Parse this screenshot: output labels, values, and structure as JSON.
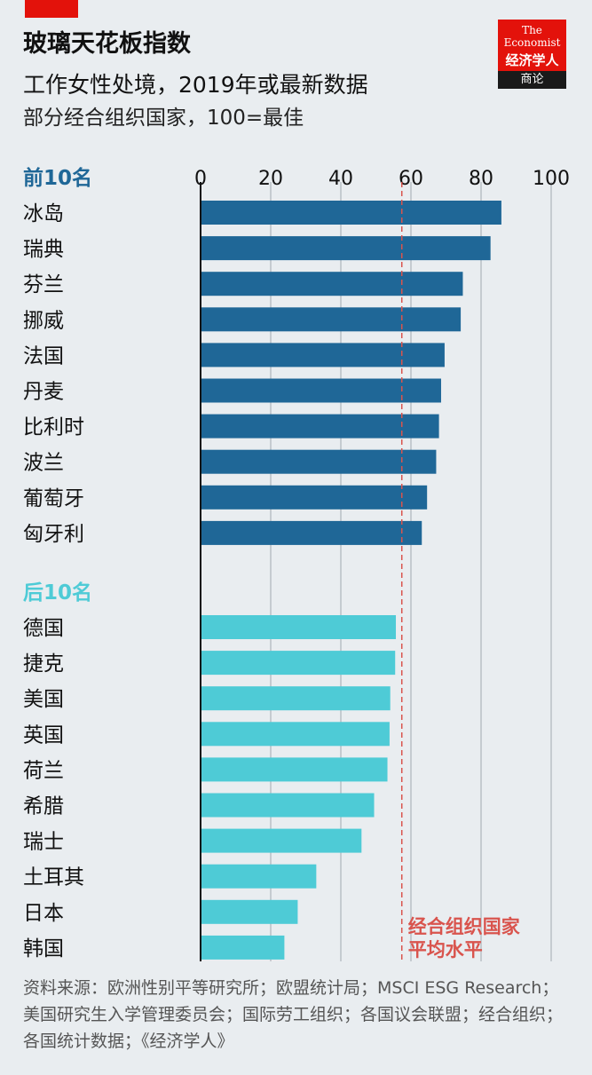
{
  "header": {
    "title": "玻璃天花板指数",
    "subtitle": "工作女性处境，2019年或最新数据",
    "note": "部分经合组织国家，100=最佳"
  },
  "logo": {
    "line1": "The",
    "line2": "Economist",
    "cn": "经济学人",
    "sub": "商论"
  },
  "chart_data": {
    "type": "bar",
    "orientation": "horizontal",
    "xlim": [
      0,
      100
    ],
    "xticks": [
      "0",
      "20",
      "40",
      "60",
      "80",
      "100"
    ],
    "grid": true,
    "groups": [
      {
        "label": "前10名",
        "color": "#1f6797",
        "categories": [
          "冰岛",
          "瑞典",
          "芬兰",
          "挪威",
          "法国",
          "丹麦",
          "比利时",
          "波兰",
          "葡萄牙",
          "匈牙利"
        ],
        "values": [
          85.8,
          82.7,
          74.8,
          74.2,
          69.6,
          68.6,
          68.0,
          67.2,
          64.6,
          63.1
        ]
      },
      {
        "label": "后10名",
        "color": "#4ecbd6",
        "categories": [
          "德国",
          "捷克",
          "美国",
          "英国",
          "荷兰",
          "希腊",
          "瑞士",
          "土耳其",
          "日本",
          "韩国"
        ],
        "values": [
          55.7,
          55.5,
          54.1,
          53.9,
          53.3,
          49.5,
          45.9,
          33.0,
          27.7,
          23.9
        ]
      }
    ],
    "reference_line": {
      "value": 57.4,
      "label_lines": [
        "经合组织国家",
        "平均水平"
      ],
      "color": "#d9544d"
    }
  },
  "source": "资料来源：欧洲性别平等研究所；欧盟统计局；MSCI ESG Research；美国研究生入学管理委员会；国际劳工组织；各国议会联盟；经合组织；各国统计数据；《经济学人》"
}
